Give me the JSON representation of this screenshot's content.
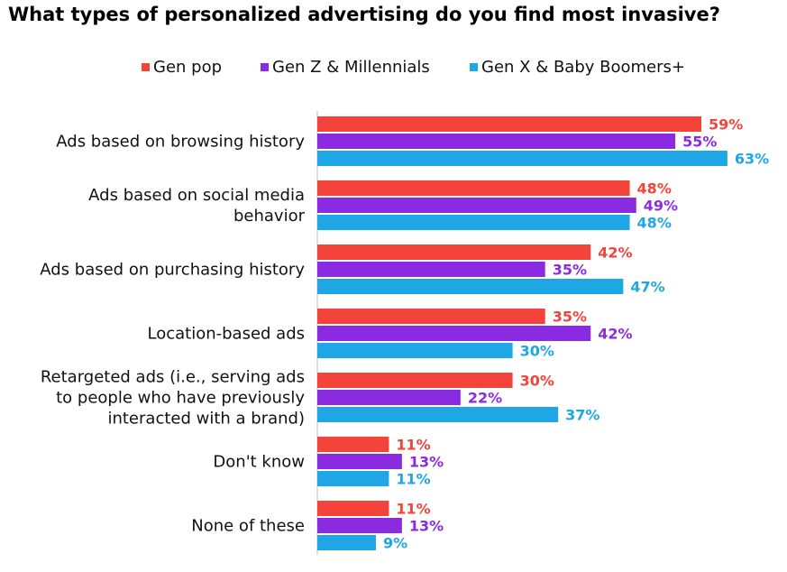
{
  "chart_data": {
    "type": "bar",
    "orientation": "horizontal",
    "title": "What types of personalized advertising do you find most invasive?",
    "categories": [
      [
        "Ads based on browsing history"
      ],
      [
        "Ads based on social media",
        "behavior"
      ],
      [
        "Ads based on purchasing history"
      ],
      [
        "Location-based ads"
      ],
      [
        "Retargeted ads (i.e., serving ads",
        "to people who have previously",
        "interacted with a brand)"
      ],
      [
        "Don't know"
      ],
      [
        "None of these"
      ]
    ],
    "series": [
      {
        "name": "Gen pop",
        "color": "#f4433b",
        "values": [
          59,
          48,
          42,
          35,
          30,
          11,
          11
        ]
      },
      {
        "name": "Gen Z & Millennials",
        "color": "#8a2be2",
        "values": [
          55,
          49,
          35,
          42,
          22,
          13,
          13
        ]
      },
      {
        "name": "Gen X & Baby Boomers+",
        "color": "#1ea7e4",
        "values": [
          63,
          48,
          47,
          30,
          37,
          11,
          9
        ]
      }
    ],
    "value_suffix": "%",
    "xlim": [
      0,
      100
    ],
    "grid": false,
    "legend_position": "top"
  }
}
